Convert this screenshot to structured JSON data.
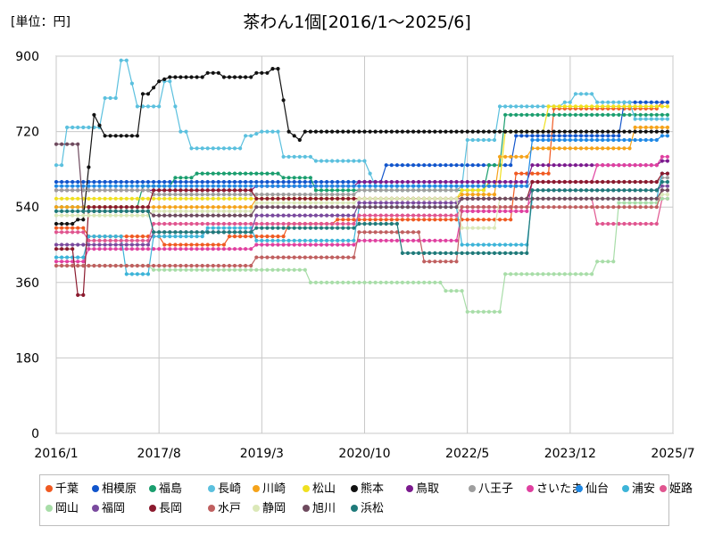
{
  "chart_data": {
    "type": "line",
    "title": "茶わん1個[2016/1～2025/6]",
    "unit_label": "[単位：円]",
    "xlabel": "",
    "ylabel": "",
    "ylim": [
      0,
      900
    ],
    "yticks": [
      "0",
      "180",
      "360",
      "540",
      "720",
      "900"
    ],
    "xticks": [
      "2016/1",
      "2017/8",
      "2019/3",
      "2020/10",
      "2022/5",
      "2023/12",
      "2025/7"
    ],
    "xrange": [
      "2016/1",
      "2025/7"
    ],
    "grid": true,
    "legend_position": "bottom",
    "series": [
      {
        "name": "千葉",
        "color": "#f05a22",
        "points": [
          [
            "2016/1",
            490
          ],
          [
            "2016/8",
            470
          ],
          [
            "2017/10",
            450
          ],
          [
            "2018/3",
            450
          ],
          [
            "2018/10",
            470
          ],
          [
            "2019/3",
            470
          ],
          [
            "2019/9",
            500
          ],
          [
            "2020/6",
            510
          ],
          [
            "2021/6",
            510
          ],
          [
            "2022/10",
            510
          ],
          [
            "2023/3",
            620
          ],
          [
            "2023/10",
            775
          ],
          [
            "2025/6",
            790
          ]
        ]
      },
      {
        "name": "相模原",
        "color": "#1155cc",
        "points": [
          [
            "2016/1",
            600
          ],
          [
            "2020/10",
            600
          ],
          [
            "2021/3",
            640
          ],
          [
            "2022/10",
            640
          ],
          [
            "2023/3",
            710
          ],
          [
            "2024/9",
            710
          ],
          [
            "2024/10",
            790
          ],
          [
            "2025/6",
            790
          ]
        ]
      },
      {
        "name": "福島",
        "color": "#1a9e6e",
        "points": [
          [
            "2016/1",
            540
          ],
          [
            "2017/6",
            590
          ],
          [
            "2017/12",
            610
          ],
          [
            "2018/4",
            620
          ],
          [
            "2019/8",
            610
          ],
          [
            "2020/2",
            580
          ],
          [
            "2021/6",
            580
          ],
          [
            "2022/10",
            640
          ],
          [
            "2023/1",
            760
          ],
          [
            "2025/6",
            760
          ]
        ]
      },
      {
        "name": "長崎",
        "color": "#5bc0de",
        "points": [
          [
            "2016/1",
            640
          ],
          [
            "2016/4",
            730
          ],
          [
            "2016/11",
            800
          ],
          [
            "2017/2",
            890
          ],
          [
            "2017/4",
            780
          ],
          [
            "2017/10",
            840
          ],
          [
            "2017/12",
            720
          ],
          [
            "2018/3",
            680
          ],
          [
            "2019/1",
            710
          ],
          [
            "2019/3",
            720
          ],
          [
            "2019/8",
            660
          ],
          [
            "2020/2",
            650
          ],
          [
            "2020/10",
            650
          ],
          [
            "2020/12",
            590
          ],
          [
            "2021/6",
            590
          ],
          [
            "2022/6",
            700
          ],
          [
            "2022/12",
            780
          ],
          [
            "2023/12",
            790
          ],
          [
            "2024/1",
            810
          ],
          [
            "2024/6",
            790
          ],
          [
            "2025/1",
            750
          ],
          [
            "2025/6",
            750
          ]
        ]
      },
      {
        "name": "川崎",
        "color": "#f5a31a",
        "points": [
          [
            "2016/1",
            540
          ],
          [
            "2017/8",
            540
          ],
          [
            "2019/3",
            560
          ],
          [
            "2020/10",
            560
          ],
          [
            "2022/5",
            570
          ],
          [
            "2022/12",
            660
          ],
          [
            "2023/6",
            680
          ],
          [
            "2024/1",
            680
          ],
          [
            "2025/1",
            730
          ],
          [
            "2025/6",
            730
          ]
        ]
      },
      {
        "name": "松山",
        "color": "#f0e020",
        "points": [
          [
            "2016/1",
            560
          ],
          [
            "2017/3",
            560
          ],
          [
            "2017/8",
            560
          ],
          [
            "2019/3",
            560
          ],
          [
            "2020/10",
            560
          ],
          [
            "2022/5",
            580
          ],
          [
            "2022/10",
            600
          ],
          [
            "2023/1",
            720
          ],
          [
            "2023/9",
            780
          ],
          [
            "2025/6",
            780
          ]
        ]
      },
      {
        "name": "熊本",
        "color": "#111111",
        "points": [
          [
            "2016/1",
            500
          ],
          [
            "2016/6",
            510
          ],
          [
            "2016/8",
            760
          ],
          [
            "2016/10",
            710
          ],
          [
            "2017/3",
            710
          ],
          [
            "2017/6",
            810
          ],
          [
            "2017/8",
            840
          ],
          [
            "2017/10",
            850
          ],
          [
            "2018/6",
            860
          ],
          [
            "2018/9",
            850
          ],
          [
            "2019/3",
            860
          ],
          [
            "2019/6",
            870
          ],
          [
            "2019/8",
            720
          ],
          [
            "2019/10",
            700
          ],
          [
            "2019/11",
            720
          ],
          [
            "2023/6",
            720
          ],
          [
            "2025/6",
            720
          ]
        ]
      },
      {
        "name": "鳥取",
        "color": "#7b1a8e",
        "points": [
          [
            "2016/1",
            580
          ],
          [
            "2017/8",
            580
          ],
          [
            "2019/3",
            590
          ],
          [
            "2020/10",
            600
          ],
          [
            "2022/5",
            600
          ],
          [
            "2023/6",
            640
          ],
          [
            "2025/6",
            650
          ]
        ]
      },
      {
        "name": "八王子",
        "color": "#9e9e9e",
        "points": [
          [
            "2016/1",
            580
          ],
          [
            "2017/8",
            570
          ],
          [
            "2019/3",
            570
          ],
          [
            "2020/10",
            580
          ],
          [
            "2022/5",
            590
          ],
          [
            "2023/6",
            600
          ],
          [
            "2025/6",
            610
          ]
        ]
      },
      {
        "name": "さいたま",
        "color": "#e040a0",
        "points": [
          [
            "2016/1",
            410
          ],
          [
            "2016/8",
            440
          ],
          [
            "2017/8",
            440
          ],
          [
            "2019/3",
            450
          ],
          [
            "2020/10",
            460
          ],
          [
            "2022/5",
            530
          ],
          [
            "2023/6",
            600
          ],
          [
            "2024/6",
            640
          ],
          [
            "2025/6",
            660
          ]
        ]
      },
      {
        "name": "仙台",
        "color": "#1e88e5",
        "points": [
          [
            "2016/1",
            590
          ],
          [
            "2017/8",
            590
          ],
          [
            "2019/3",
            590
          ],
          [
            "2020/10",
            590
          ],
          [
            "2022/5",
            590
          ],
          [
            "2023/6",
            700
          ],
          [
            "2025/6",
            710
          ]
        ]
      },
      {
        "name": "浦安",
        "color": "#3db4d8",
        "points": [
          [
            "2016/1",
            420
          ],
          [
            "2016/8",
            470
          ],
          [
            "2017/3",
            380
          ],
          [
            "2017/8",
            470
          ],
          [
            "2018/6",
            490
          ],
          [
            "2019/3",
            460
          ],
          [
            "2020/10",
            540
          ],
          [
            "2022/5",
            450
          ],
          [
            "2023/6",
            560
          ],
          [
            "2025/6",
            620
          ]
        ]
      },
      {
        "name": "姫路",
        "color": "#e0558f",
        "points": [
          [
            "2016/1",
            480
          ],
          [
            "2016/8",
            460
          ],
          [
            "2017/8",
            500
          ],
          [
            "2019/3",
            500
          ],
          [
            "2020/10",
            520
          ],
          [
            "2022/5",
            540
          ],
          [
            "2023/6",
            560
          ],
          [
            "2024/6",
            500
          ],
          [
            "2025/6",
            560
          ]
        ]
      },
      {
        "name": "岡山",
        "color": "#a8dda8",
        "points": [
          [
            "2016/1",
            400
          ],
          [
            "2017/8",
            390
          ],
          [
            "2019/3",
            390
          ],
          [
            "2020/1",
            360
          ],
          [
            "2021/6",
            360
          ],
          [
            "2022/2",
            340
          ],
          [
            "2022/6",
            290
          ],
          [
            "2022/10",
            290
          ],
          [
            "2023/1",
            380
          ],
          [
            "2024/6",
            410
          ],
          [
            "2024/10",
            550
          ],
          [
            "2025/6",
            560
          ]
        ]
      },
      {
        "name": "福岡",
        "color": "#7a4a9e",
        "points": [
          [
            "2016/1",
            450
          ],
          [
            "2017/8",
            480
          ],
          [
            "2019/3",
            520
          ],
          [
            "2020/10",
            550
          ],
          [
            "2022/5",
            560
          ],
          [
            "2023/6",
            580
          ],
          [
            "2025/6",
            590
          ]
        ]
      },
      {
        "name": "長岡",
        "color": "#8b1a2e",
        "points": [
          [
            "2016/1",
            440
          ],
          [
            "2016/6",
            330
          ],
          [
            "2016/7",
            540
          ],
          [
            "2017/8",
            580
          ],
          [
            "2019/3",
            560
          ],
          [
            "2020/10",
            560
          ],
          [
            "2022/5",
            560
          ],
          [
            "2023/6",
            600
          ],
          [
            "2025/6",
            620
          ]
        ]
      },
      {
        "name": "水戸",
        "color": "#c06060",
        "points": [
          [
            "2016/1",
            400
          ],
          [
            "2017/8",
            400
          ],
          [
            "2019/3",
            420
          ],
          [
            "2020/10",
            480
          ],
          [
            "2021/10",
            410
          ],
          [
            "2022/5",
            540
          ],
          [
            "2023/6",
            540
          ],
          [
            "2025/6",
            580
          ]
        ]
      },
      {
        "name": "静岡",
        "color": "#dbe8b8",
        "points": [
          [
            "2016/1",
            520
          ],
          [
            "2017/8",
            530
          ],
          [
            "2019/3",
            550
          ],
          [
            "2020/10",
            560
          ],
          [
            "2022/5",
            490
          ],
          [
            "2022/12",
            560
          ],
          [
            "2025/6",
            570
          ]
        ]
      },
      {
        "name": "旭川",
        "color": "#6e4a5e",
        "points": [
          [
            "2016/1",
            690
          ],
          [
            "2016/5",
            690
          ],
          [
            "2016/6",
            530
          ],
          [
            "2017/8",
            520
          ],
          [
            "2019/3",
            540
          ],
          [
            "2020/10",
            540
          ],
          [
            "2022/5",
            560
          ],
          [
            "2023/6",
            560
          ],
          [
            "2025/6",
            580
          ]
        ]
      },
      {
        "name": "浜松",
        "color": "#1f7a7a",
        "points": [
          [
            "2016/1",
            530
          ],
          [
            "2017/8",
            480
          ],
          [
            "2019/3",
            490
          ],
          [
            "2020/10",
            500
          ],
          [
            "2021/6",
            430
          ],
          [
            "2022/5",
            430
          ],
          [
            "2023/6",
            580
          ],
          [
            "2025/6",
            600
          ]
        ]
      }
    ]
  }
}
